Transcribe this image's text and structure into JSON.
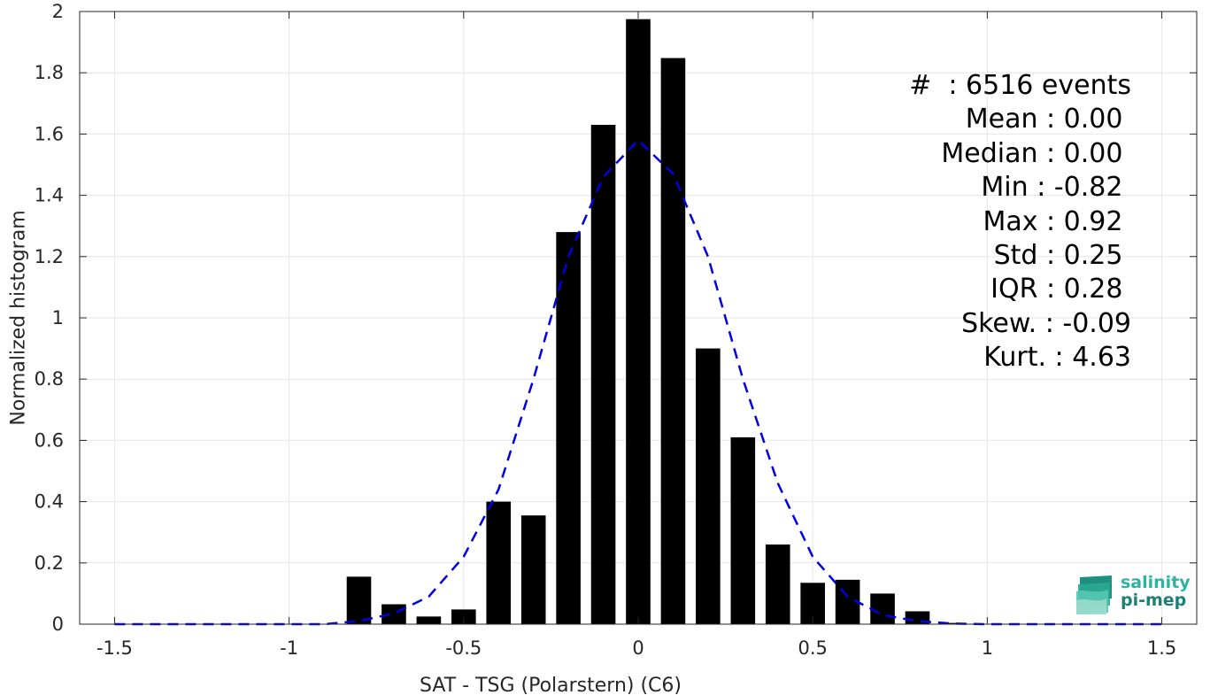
{
  "chart_data": {
    "type": "bar",
    "title": "",
    "xlabel": "SAT - TSG (Polarstern) (C6)",
    "ylabel": "Normalized histogram",
    "xlim": [
      -1.6,
      1.6
    ],
    "ylim": [
      0,
      2
    ],
    "grid": true,
    "x_ticks": [
      "-1.5",
      "-1",
      "-0.5",
      "0",
      "0.5",
      "1",
      "1.5"
    ],
    "x_tick_values": [
      -1.5,
      -1,
      -0.5,
      0,
      0.5,
      1,
      1.5
    ],
    "y_ticks": [
      "0",
      "0.2",
      "0.4",
      "0.6",
      "0.8",
      "1",
      "1.2",
      "1.4",
      "1.6",
      "1.8",
      "2"
    ],
    "y_tick_values": [
      0,
      0.2,
      0.4,
      0.6,
      0.8,
      1,
      1.2,
      1.4,
      1.6,
      1.8,
      2
    ],
    "bar_width": 0.07,
    "bars": {
      "x": [
        -0.8,
        -0.7,
        -0.6,
        -0.5,
        -0.4,
        -0.3,
        -0.2,
        -0.1,
        0.0,
        0.1,
        0.2,
        0.3,
        0.4,
        0.5,
        0.6,
        0.7,
        0.8,
        0.9
      ],
      "values": [
        0.155,
        0.065,
        0.025,
        0.048,
        0.4,
        0.355,
        1.28,
        1.63,
        1.975,
        1.848,
        0.9,
        0.61,
        0.26,
        0.135,
        0.145,
        0.1,
        0.042,
        0.004
      ],
      "color": "#000000"
    },
    "series": [
      {
        "style": "dashed",
        "color": "#0000e0",
        "x": [
          -1.5,
          -1.3,
          -1.1,
          -0.9,
          -0.8,
          -0.7,
          -0.6,
          -0.5,
          -0.4,
          -0.3,
          -0.2,
          -0.1,
          0.0,
          0.1,
          0.2,
          0.3,
          0.4,
          0.5,
          0.6,
          0.7,
          0.8,
          0.9,
          1.0,
          1.2,
          1.5
        ],
        "values": [
          0.0,
          0.0,
          0.0,
          0.0,
          0.01,
          0.035,
          0.09,
          0.22,
          0.44,
          0.8,
          1.2,
          1.46,
          1.58,
          1.47,
          1.2,
          0.8,
          0.46,
          0.22,
          0.09,
          0.03,
          0.01,
          0.002,
          0.0,
          0.0,
          0.0
        ]
      }
    ]
  },
  "stats": [
    "#  : 6516 events",
    "Mean : 0.00 ",
    "Median : 0.00 ",
    "Min : -0.82 ",
    "Max : 0.92 ",
    "Std : 0.25 ",
    "IQR : 0.28 ",
    "Skew. : -0.09",
    "Kurt. : 4.63"
  ],
  "logo": {
    "line1": "salinity",
    "line2": "pi-mep"
  }
}
